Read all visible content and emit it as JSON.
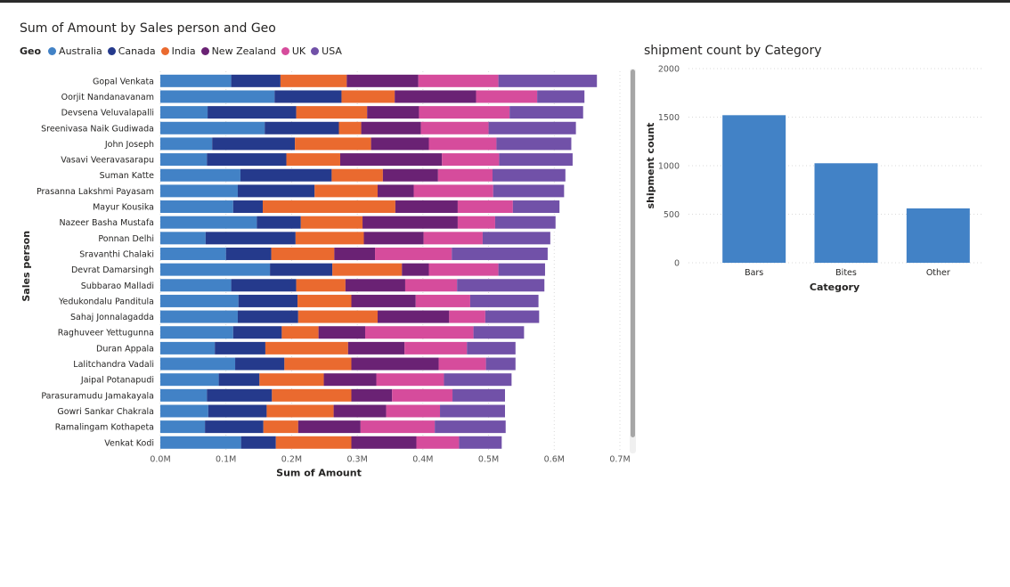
{
  "colors": {
    "Australia": "#4282c6",
    "Canada": "#253a8c",
    "India": "#ea6a2f",
    "New Zealand": "#6a2274",
    "UK": "#d64c9c",
    "USA": "#7151a8"
  },
  "chart_data": [
    {
      "type": "bar",
      "orientation": "horizontal",
      "stacked": true,
      "title": "Sum of Amount by Sales person and Geo",
      "legend_title": "Geo",
      "legend_position": "top-left",
      "xlabel": "Sum of Amount",
      "ylabel": "Sales person",
      "xlim": [
        0,
        700000
      ],
      "xticks": [
        "0.0M",
        "0.1M",
        "0.2M",
        "0.3M",
        "0.4M",
        "0.5M",
        "0.6M",
        "0.7M"
      ],
      "grid": true,
      "categories": [
        "Gopal Venkata",
        "Oorjit Nandanavanam",
        "Devsena Veluvalapalli",
        "Sreenivasa Naik Gudiwada",
        "John Joseph",
        "Vasavi Veeravasarapu",
        "Suman Katte",
        "Prasanna Lakshmi Payasam",
        "Mayur Kousika",
        "Nazeer Basha Mustafa",
        "Ponnan Delhi",
        "Sravanthi Chalaki",
        "Devrat Damarsingh",
        "Subbarao Malladi",
        "Yedukondalu Panditula",
        "Sahaj Jonnalagadda",
        "Raghuveer Yettugunna",
        "Duran Appala",
        "Lalitchandra Vadali",
        "Jaipal Potanapudi",
        "Parasuramudu Jamakayala",
        "Gowri Sankar Chakrala",
        "Ramalingam Kothapeta",
        "Venkat Kodi"
      ],
      "series": [
        {
          "name": "Australia",
          "values": [
            108000,
            174000,
            72000,
            159000,
            79000,
            71000,
            122000,
            118000,
            111000,
            147000,
            69000,
            100000,
            167000,
            108000,
            119000,
            118000,
            111000,
            83000,
            114000,
            89000,
            71000,
            73000,
            68000,
            123000
          ]
        },
        {
          "name": "Canada",
          "values": [
            75000,
            102000,
            135000,
            113000,
            126000,
            121000,
            139000,
            117000,
            45000,
            67000,
            137000,
            69000,
            95000,
            99000,
            90000,
            92000,
            74000,
            77000,
            75000,
            62000,
            99000,
            89000,
            89000,
            53000
          ]
        },
        {
          "name": "India",
          "values": [
            101000,
            81000,
            108000,
            34000,
            116000,
            82000,
            78000,
            96000,
            202000,
            94000,
            104000,
            96000,
            106000,
            75000,
            82000,
            121000,
            56000,
            126000,
            102000,
            98000,
            121000,
            102000,
            53000,
            115000
          ]
        },
        {
          "name": "New Zealand",
          "values": [
            109000,
            124000,
            79000,
            91000,
            88000,
            155000,
            84000,
            55000,
            95000,
            145000,
            91000,
            62000,
            41000,
            91000,
            98000,
            109000,
            71000,
            86000,
            133000,
            80000,
            62000,
            80000,
            95000,
            99000
          ]
        },
        {
          "name": "UK",
          "values": [
            122000,
            93000,
            138000,
            103000,
            103000,
            87000,
            83000,
            121000,
            84000,
            57000,
            90000,
            117000,
            106000,
            79000,
            83000,
            55000,
            165000,
            95000,
            72000,
            103000,
            92000,
            82000,
            113000,
            65000
          ]
        },
        {
          "name": "USA",
          "values": [
            150000,
            72000,
            112000,
            133000,
            114000,
            112000,
            111000,
            108000,
            71000,
            92000,
            103000,
            146000,
            71000,
            133000,
            104000,
            82000,
            77000,
            74000,
            45000,
            103000,
            80000,
            99000,
            108000,
            65000
          ]
        }
      ]
    },
    {
      "type": "bar",
      "title": "shipment count by Category",
      "xlabel": "Category",
      "ylabel": "shipment count",
      "categories": [
        "Bars",
        "Bites",
        "Other"
      ],
      "values": [
        1520,
        1025,
        560
      ],
      "ylim": [
        0,
        2000
      ],
      "yticks": [
        "0",
        "500",
        "1000",
        "1500",
        "2000"
      ],
      "grid": true,
      "color": "#4282c6"
    }
  ]
}
